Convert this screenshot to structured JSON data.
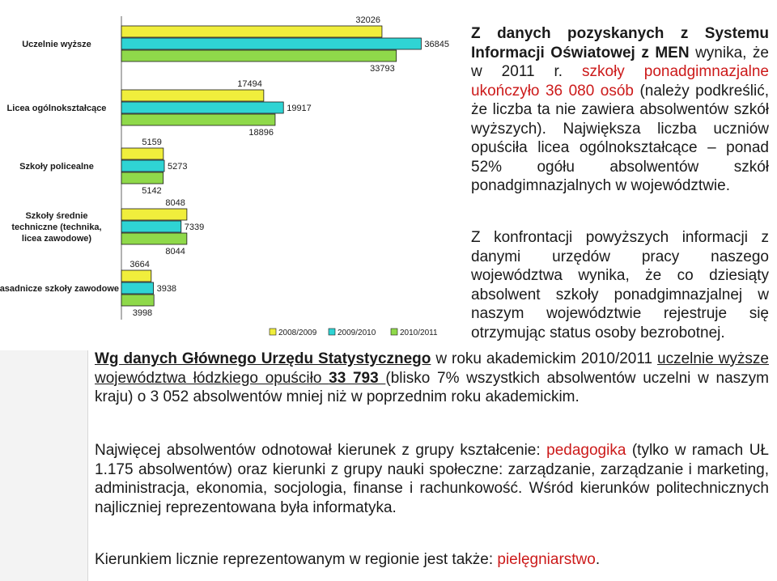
{
  "colors": {
    "series_2008": "#f0ee3c",
    "series_2009": "#2fd4d4",
    "series_2010": "#8fd94a",
    "highlight": "#cc1a1a"
  },
  "chart_data": {
    "type": "bar",
    "orientation": "horizontal",
    "categories": [
      "Uczelnie wyższe",
      "Licea ogólnokształcące",
      "Szkoły policealne",
      "Szkoły średnie techniczne (technika, licea zawodowe)",
      "Zasadnicze szkoły zawodowe"
    ],
    "series": [
      {
        "name": "2008/2009",
        "values": [
          32026,
          17494,
          5159,
          8048,
          3664
        ]
      },
      {
        "name": "2009/2010",
        "values": [
          36845,
          19917,
          5273,
          7339,
          3938
        ]
      },
      {
        "name": "2010/2011",
        "values": [
          33793,
          18896,
          5142,
          8044,
          3998
        ]
      }
    ],
    "legend_position": "bottom",
    "grid": false,
    "xlim": [
      0,
      38000
    ]
  },
  "text": {
    "side1": {
      "bold": "Z danych pozyskanych z Systemu Informacji Oświatowej z MEN",
      "normal": " wynika, że w 2011 r. ",
      "red": "szkoły ponadgimnazjalne ukończyło 36 080 osób",
      "rest": " (należy podkreślić, że liczba ta nie zawiera absolwentów szkół wyższych). Największa liczba uczniów opuściła licea ogólnokształcące – ponad 52% ogółu absolwentów szkół ponadgimnazjalnych w województwie."
    },
    "side2": "Z konfrontacji powyższych informacji z danymi urzędów pracy naszego województwa wynika, że co dziesiąty absolwent szkoły ponadgimnazjalnej w naszym województwie rejestruje się otrzymując status osoby bezrobotnej.",
    "bottom1": {
      "bold_ul": "Wg danych Głównego Urzędu Statystycznego",
      "normal1": " w roku akademickim 2010/2011 ",
      "ul": "uczelnie wyższe województwa łódzkiego opuściło ",
      "ul_bold": "33 793 ",
      "rest": "(blisko 7% wszystkich absolwentów uczelni w naszym kraju) o 3 052 absolwentów mniej niż w poprzednim roku akademickim."
    },
    "bottom2": {
      "part1": "Najwięcej absolwentów odnotował kierunek z grupy kształcenie: ",
      "red": "pedagogika",
      "part2": " (tylko w ramach UŁ 1.175 absolwentów) oraz kierunki z grupy nauki społeczne: zarządzanie, zarządzanie i marketing, administracja, ekonomia, socjologia, finanse i rachunkowość. Wśród kierunków politechnicznych najliczniej reprezentowana była informatyka."
    },
    "bottom3": {
      "part1": "Kierunkiem licznie reprezentowanym w regionie jest także: ",
      "red": "pielęgniarstwo",
      "part2": "."
    }
  }
}
